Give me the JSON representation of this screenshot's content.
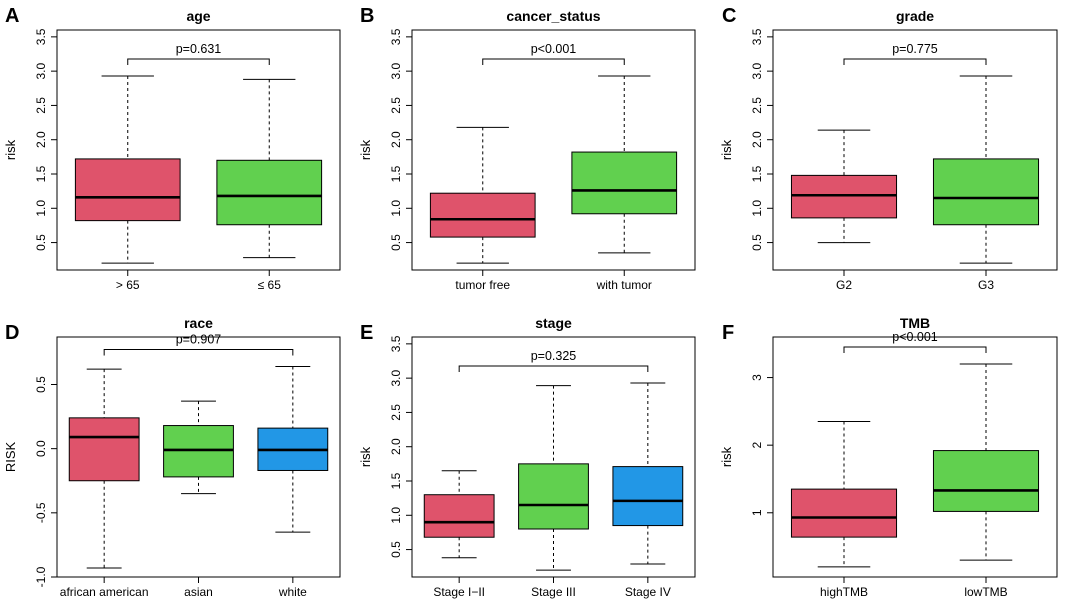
{
  "chart_data": [
    {
      "panel": "A",
      "title": "age",
      "type": "box",
      "ylabel": "risk",
      "ylim": [
        0.1,
        3.6
      ],
      "yticks": [
        0.5,
        1.0,
        1.5,
        2.0,
        2.5,
        3.0,
        3.5
      ],
      "yticklabels": [
        "0.5",
        "1.0",
        "1.5",
        "2.0",
        "2.5",
        "3.0",
        "3.5"
      ],
      "pvalue": "p=0.631",
      "bracket": [
        0,
        1
      ],
      "groups": [
        {
          "label": "> 65",
          "color": "#DF536B",
          "min": 0.2,
          "q1": 0.82,
          "median": 1.16,
          "q3": 1.72,
          "max": 2.93
        },
        {
          "label": "≤ 65",
          "color": "#61D04F",
          "min": 0.28,
          "q1": 0.76,
          "median": 1.18,
          "q3": 1.7,
          "max": 2.88
        }
      ]
    },
    {
      "panel": "B",
      "title": "cancer_status",
      "type": "box",
      "ylabel": "risk",
      "ylim": [
        0.1,
        3.6
      ],
      "yticks": [
        0.5,
        1.0,
        1.5,
        2.0,
        2.5,
        3.0,
        3.5
      ],
      "yticklabels": [
        "0.5",
        "1.0",
        "1.5",
        "2.0",
        "2.5",
        "3.0",
        "3.5"
      ],
      "pvalue": "p<0.001",
      "bracket": [
        0,
        1
      ],
      "groups": [
        {
          "label": "tumor free",
          "color": "#DF536B",
          "min": 0.2,
          "q1": 0.58,
          "median": 0.84,
          "q3": 1.22,
          "max": 2.18
        },
        {
          "label": "with tumor",
          "color": "#61D04F",
          "min": 0.35,
          "q1": 0.92,
          "median": 1.26,
          "q3": 1.82,
          "max": 2.93
        }
      ]
    },
    {
      "panel": "C",
      "title": "grade",
      "type": "box",
      "ylabel": "risk",
      "ylim": [
        0.1,
        3.6
      ],
      "yticks": [
        0.5,
        1.0,
        1.5,
        2.0,
        2.5,
        3.0,
        3.5
      ],
      "yticklabels": [
        "0.5",
        "1.0",
        "1.5",
        "2.0",
        "2.5",
        "3.0",
        "3.5"
      ],
      "pvalue": "p=0.775",
      "bracket": [
        0,
        1
      ],
      "groups": [
        {
          "label": "G2",
          "color": "#DF536B",
          "min": 0.5,
          "q1": 0.86,
          "median": 1.19,
          "q3": 1.48,
          "max": 2.14
        },
        {
          "label": "G3",
          "color": "#61D04F",
          "min": 0.2,
          "q1": 0.76,
          "median": 1.15,
          "q3": 1.72,
          "max": 2.93
        }
      ]
    },
    {
      "panel": "D",
      "title": "race",
      "type": "box",
      "ylabel": "RISK",
      "ylim": [
        -1.0,
        0.87
      ],
      "yticks": [
        -1.0,
        -0.5,
        0.0,
        0.5
      ],
      "yticklabels": [
        "-1.0",
        "-0.5",
        "0.0",
        "0.5"
      ],
      "pvalue": "p=0.907",
      "bracket": [
        0,
        2
      ],
      "groups": [
        {
          "label": "african american",
          "color": "#DF536B",
          "min": -0.93,
          "q1": -0.25,
          "median": 0.09,
          "q3": 0.24,
          "max": 0.62
        },
        {
          "label": "asian",
          "color": "#61D04F",
          "min": -0.35,
          "q1": -0.22,
          "median": -0.01,
          "q3": 0.18,
          "max": 0.37
        },
        {
          "label": "white",
          "color": "#2297E6",
          "min": -0.65,
          "q1": -0.17,
          "median": -0.01,
          "q3": 0.16,
          "max": 0.64
        }
      ]
    },
    {
      "panel": "E",
      "title": "stage",
      "type": "box",
      "ylabel": "risk",
      "ylim": [
        0.1,
        3.6
      ],
      "yticks": [
        0.5,
        1.0,
        1.5,
        2.0,
        2.5,
        3.0,
        3.5
      ],
      "yticklabels": [
        "0.5",
        "1.0",
        "1.5",
        "2.0",
        "2.5",
        "3.0",
        "3.5"
      ],
      "pvalue": "p=0.325",
      "bracket": [
        0,
        2
      ],
      "groups": [
        {
          "label": "Stage I−II",
          "color": "#DF536B",
          "min": 0.38,
          "q1": 0.68,
          "median": 0.9,
          "q3": 1.3,
          "max": 1.65
        },
        {
          "label": "Stage III",
          "color": "#61D04F",
          "min": 0.2,
          "q1": 0.8,
          "median": 1.15,
          "q3": 1.75,
          "max": 2.89
        },
        {
          "label": "Stage IV",
          "color": "#2297E6",
          "min": 0.29,
          "q1": 0.85,
          "median": 1.21,
          "q3": 1.71,
          "max": 2.93
        }
      ]
    },
    {
      "panel": "F",
      "title": "TMB",
      "type": "box",
      "ylabel": "risk",
      "ylim": [
        0.05,
        3.6
      ],
      "yticks": [
        1,
        2,
        3
      ],
      "yticklabels": [
        "1",
        "2",
        "3"
      ],
      "pvalue": "p<0.001",
      "bracket": [
        0,
        1
      ],
      "groups": [
        {
          "label": "highTMB",
          "color": "#DF536B",
          "min": 0.2,
          "q1": 0.64,
          "median": 0.93,
          "q3": 1.35,
          "max": 2.35
        },
        {
          "label": "lowTMB",
          "color": "#61D04F",
          "min": 0.3,
          "q1": 1.02,
          "median": 1.33,
          "q3": 1.92,
          "max": 3.2
        }
      ]
    }
  ]
}
